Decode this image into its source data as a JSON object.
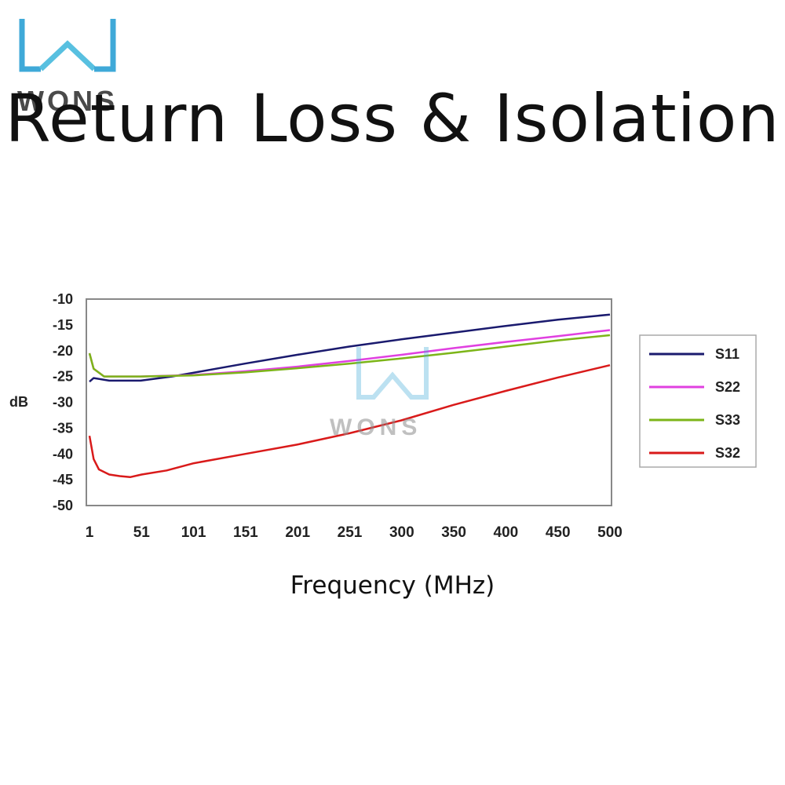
{
  "brand": {
    "name": "WONS",
    "logo_color": "#3fa9d8"
  },
  "title": "Return Loss & Isolation",
  "chart_data": {
    "type": "line",
    "title": "Return Loss & Isolation",
    "xlabel": "Frequency (MHz)",
    "ylabel": "dB",
    "xlim": [
      1,
      500
    ],
    "ylim": [
      -50,
      -10
    ],
    "x_ticks": [
      "1",
      "51",
      "101",
      "151",
      "201",
      "251",
      "300",
      "350",
      "400",
      "450",
      "500"
    ],
    "y_ticks": [
      "-10",
      "-15",
      "-20",
      "-25",
      "-30",
      "-35",
      "-40",
      "-45",
      "-50"
    ],
    "grid": false,
    "legend_position": "right",
    "series": [
      {
        "name": "S11",
        "color": "#1a1a6e",
        "x": [
          1,
          5,
          20,
          50,
          80,
          100,
          150,
          200,
          250,
          300,
          350,
          400,
          450,
          500
        ],
        "y": [
          -26,
          -25.3,
          -25.8,
          -25.8,
          -25,
          -24.3,
          -22.5,
          -20.8,
          -19.2,
          -17.8,
          -16.5,
          -15.2,
          -14,
          -13
        ]
      },
      {
        "name": "S22",
        "color": "#e040e0",
        "x": [
          1,
          5,
          15,
          50,
          100,
          150,
          200,
          250,
          300,
          350,
          400,
          450,
          500
        ],
        "y": [
          -20.5,
          -23.5,
          -25,
          -25,
          -24.7,
          -24,
          -23.1,
          -22,
          -20.8,
          -19.5,
          -18.3,
          -17.2,
          -16
        ]
      },
      {
        "name": "S33",
        "color": "#7cb518",
        "x": [
          1,
          5,
          15,
          50,
          100,
          150,
          200,
          250,
          300,
          350,
          400,
          450,
          500
        ],
        "y": [
          -20.5,
          -23.5,
          -25,
          -25,
          -24.8,
          -24.2,
          -23.4,
          -22.5,
          -21.5,
          -20.4,
          -19.2,
          -18,
          -17
        ]
      },
      {
        "name": "S32",
        "color": "#d91a1a",
        "x": [
          1,
          5,
          10,
          20,
          30,
          40,
          51,
          75,
          101,
          150,
          200,
          250,
          300,
          350,
          400,
          450,
          500
        ],
        "y": [
          -36.5,
          -41,
          -43,
          -44,
          -44.3,
          -44.5,
          -44,
          -43.2,
          -41.8,
          -40,
          -38.2,
          -36,
          -33.5,
          -30.5,
          -27.8,
          -25.2,
          -22.8
        ]
      }
    ]
  }
}
